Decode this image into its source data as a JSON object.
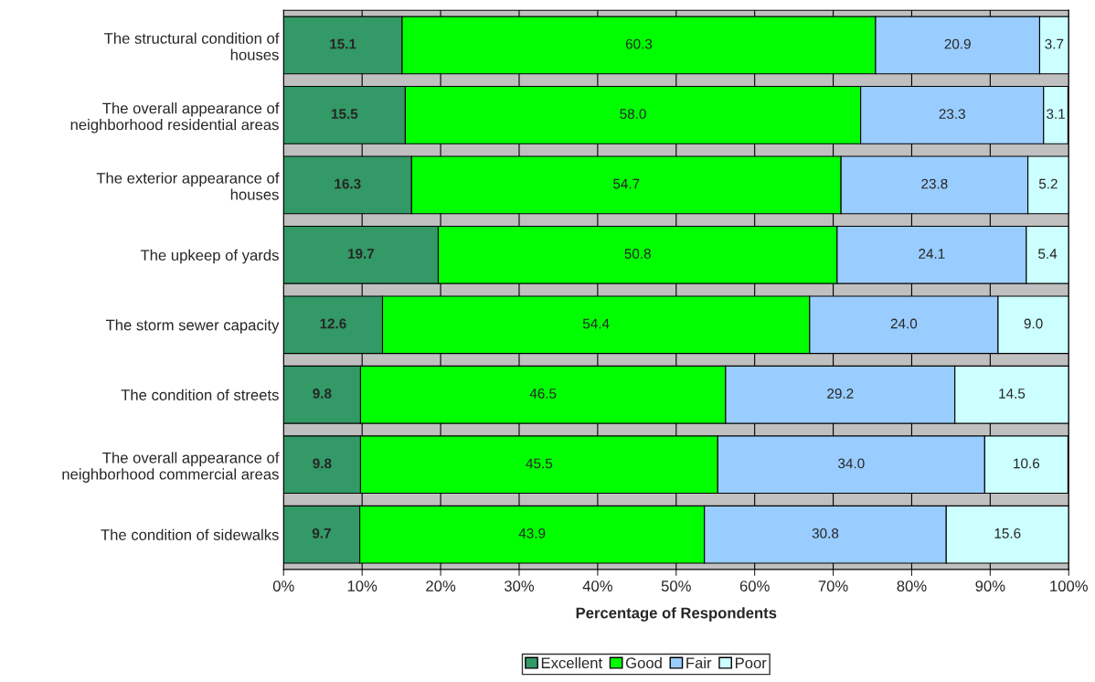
{
  "chart_data": {
    "type": "bar",
    "orientation": "horizontal",
    "stacked": true,
    "xlabel": "Percentage of Respondents",
    "categories": [
      "The structural condition of houses",
      "The overall appearance of neighborhood residential areas",
      "The exterior appearance of houses",
      "The upkeep of yards",
      "The storm sewer capacity",
      "The condition of streets",
      "The overall appearance of neighborhood commercial areas",
      "The condition of sidewalks"
    ],
    "series": [
      {
        "name": "Excellent",
        "color": "#339966",
        "values": [
          15.1,
          15.5,
          16.3,
          19.7,
          12.6,
          9.8,
          9.8,
          9.7
        ],
        "value_labels": [
          "15.1",
          "15.5",
          "16.3",
          "19.7",
          "12.6",
          "9.8",
          "9.8",
          "9.7"
        ]
      },
      {
        "name": "Good",
        "color": "#00ff00",
        "values": [
          60.3,
          58.0,
          54.7,
          50.8,
          54.4,
          46.5,
          45.5,
          43.9
        ],
        "value_labels": [
          "60.3",
          "58.0",
          "54.7",
          "50.8",
          "54.4",
          "46.5",
          "45.5",
          "43.9"
        ]
      },
      {
        "name": "Fair",
        "color": "#99ccff",
        "values": [
          20.9,
          23.3,
          23.8,
          24.1,
          24.0,
          29.2,
          34.0,
          30.8
        ],
        "value_labels": [
          "20.9",
          "23.3",
          "23.8",
          "24.1",
          "24.0",
          "29.2",
          "34.0",
          "30.8"
        ]
      },
      {
        "name": "Poor",
        "color": "#ccffff",
        "values": [
          3.7,
          3.1,
          5.2,
          5.4,
          9.0,
          14.5,
          10.6,
          15.6
        ],
        "value_labels": [
          "3.7",
          "3.1",
          "5.2",
          "5.4",
          "9.0",
          "14.5",
          "10.6",
          "15.6"
        ]
      }
    ],
    "xlim": [
      0,
      100
    ],
    "xticks": [
      {
        "value": 0,
        "label": "0%"
      },
      {
        "value": 10,
        "label": "10%"
      },
      {
        "value": 20,
        "label": "20%"
      },
      {
        "value": 30,
        "label": "30%"
      },
      {
        "value": 40,
        "label": "40%"
      },
      {
        "value": 50,
        "label": "50%"
      },
      {
        "value": 60,
        "label": "60%"
      },
      {
        "value": 70,
        "label": "70%"
      },
      {
        "value": 80,
        "label": "80%"
      },
      {
        "value": 90,
        "label": "90%"
      },
      {
        "value": 100,
        "label": "100%"
      }
    ],
    "grid": "x",
    "legend": "bottom"
  }
}
